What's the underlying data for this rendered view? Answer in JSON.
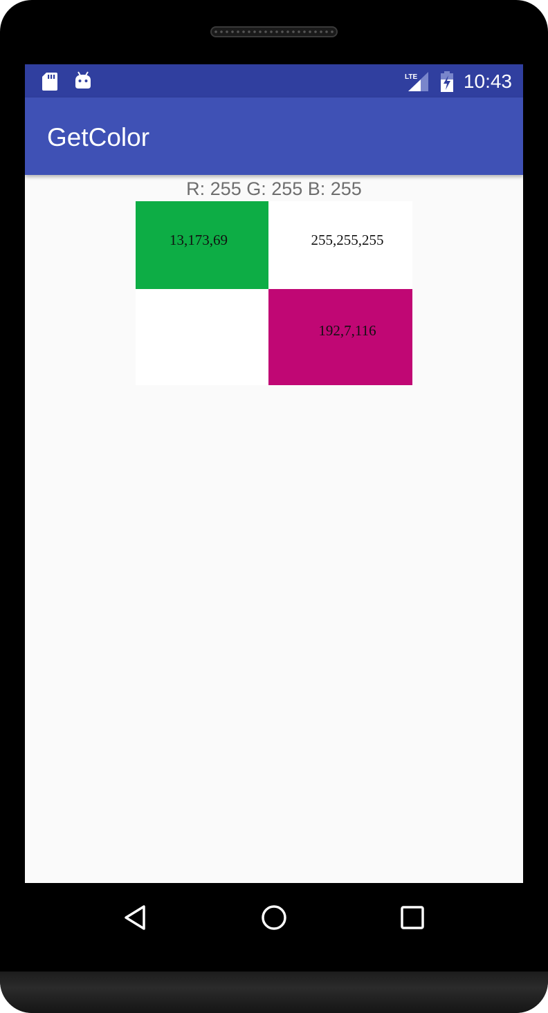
{
  "status_bar": {
    "time": "10:43",
    "icons": [
      "sd-card-icon",
      "android-icon",
      "lte-signal-icon",
      "battery-charging-icon"
    ]
  },
  "app_bar": {
    "title": "GetColor"
  },
  "readout": {
    "text": "R: 255 G: 255 B: 255"
  },
  "image": {
    "cells": [
      {
        "label": "13,173,69",
        "color": "#0dad45"
      },
      {
        "label": "255,255,255",
        "color": "#ffffff"
      },
      {
        "label": "",
        "color": "#ffffff"
      },
      {
        "label": "192,7,116",
        "color": "#c00774"
      }
    ]
  },
  "nav_bar": {
    "icons": [
      "back-icon",
      "home-icon",
      "recent-apps-icon"
    ]
  },
  "colors": {
    "status_bar": "#303f9f",
    "app_bar": "#3f51b5",
    "background": "#fafafa"
  }
}
